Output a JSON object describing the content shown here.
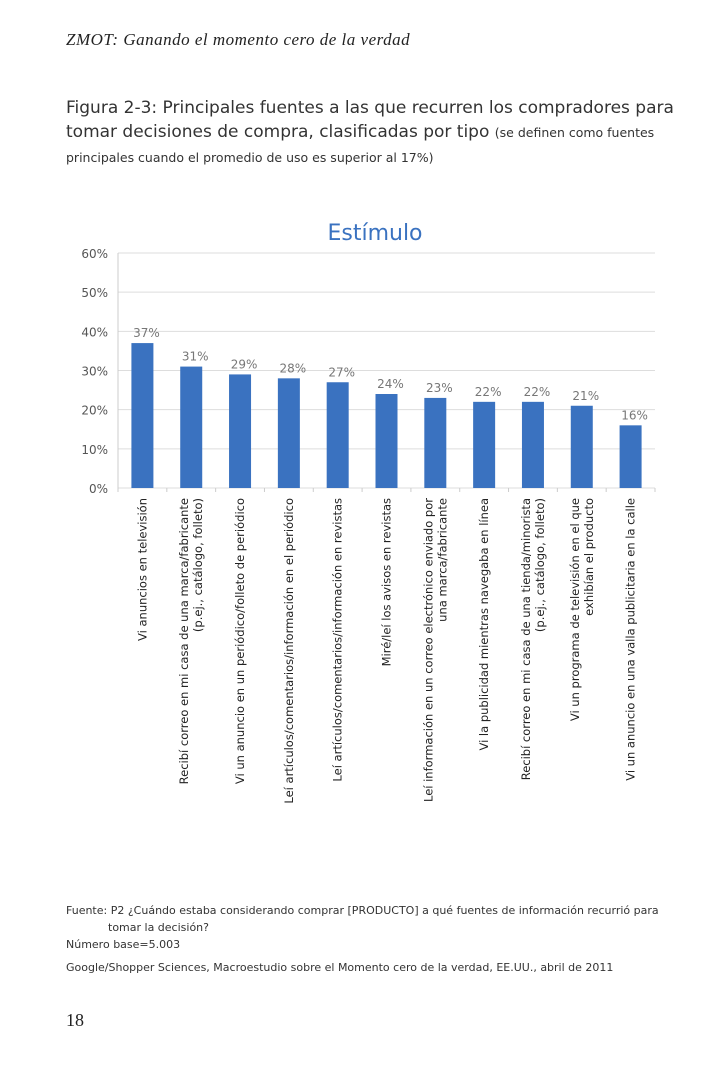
{
  "header": "ZMOT: Ganando el momento cero de la verdad",
  "figure": {
    "title": "Figura 2-3: Principales fuentes a las que recurren los compradores para tomar decisiones de compra, clasificadas por tipo",
    "note": "(se definen como fuentes principales cuando el promedio de uso es superior al 17%)"
  },
  "chart_data": {
    "type": "bar",
    "title": "Estímulo",
    "categories": [
      "Vi anuncios en televisión",
      "Recibí correo en mi casa de una marca/fabricante\n(p.ej., catálogo, folleto)",
      "Vi un anuncio en un periódico/folleto de periódico",
      "Leí artículos/comentarios/información en el periódico",
      "Leí artículos/comentarios/información en revistas",
      "Miré/leí los avisos en revistas",
      "Leí información en un correo electrónico enviado por\nuna marca/fabricante",
      "Vi la publicidad mientras navegaba en línea",
      "Recibí correo en mi casa de una tienda/minorista\n(p.ej., catálogo, folleto)",
      "Vi un programa de televisión en el que\nexhibían el producto",
      "Vi un anuncio en una valla publicitaria en la calle"
    ],
    "values": [
      37,
      31,
      29,
      28,
      27,
      24,
      23,
      22,
      22,
      21,
      16
    ],
    "value_labels": [
      "37%",
      "31%",
      "29%",
      "28%",
      "27%",
      "24%",
      "23%",
      "22%",
      "22%",
      "21%",
      "16%"
    ],
    "color": "#3a72c0",
    "ylim": [
      0,
      60
    ],
    "yticks": [
      {
        "value": 0,
        "label": "0%"
      },
      {
        "value": 10,
        "label": "10%"
      },
      {
        "value": 20,
        "label": "20%"
      },
      {
        "value": 30,
        "label": "30%"
      },
      {
        "value": 40,
        "label": "40%"
      },
      {
        "value": 50,
        "label": "50%"
      },
      {
        "value": 60,
        "label": "60%"
      }
    ],
    "grid": true
  },
  "footer": {
    "source": "Fuente: P2 ¿Cuándo estaba considerando comprar [PRODUCTO] a qué fuentes de información recurrió para tomar la decisión?",
    "base": "Número base=5.003",
    "credit": "Google/Shopper Sciences, Macroestudio sobre el Momento cero de la verdad, EE.UU., abril de 2011"
  },
  "page_number": "18"
}
